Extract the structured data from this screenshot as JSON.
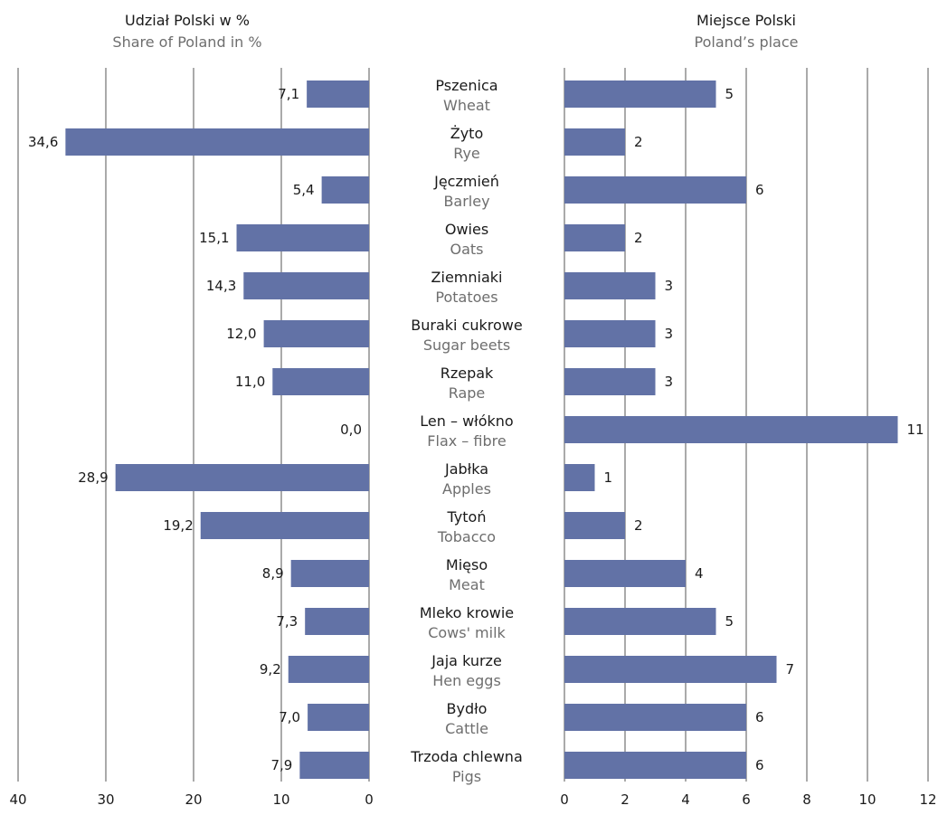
{
  "chart_data": [
    {
      "type": "bar",
      "orientation": "horizontal",
      "direction": "right-to-left",
      "title": "Udział Polski w %",
      "subtitle": "Share of Poland in %",
      "xlim": [
        0,
        40
      ],
      "ticks": [
        "40",
        "30",
        "20",
        "10",
        "0"
      ],
      "grid": true,
      "bar_color": "#6272a6",
      "categories": [
        "Pszenica",
        "Żyto",
        "Jęczmień",
        "Owies",
        "Ziemniaki",
        "Buraki cukrowe",
        "Rzepak",
        "Len – włókno",
        "Jabłka",
        "Tytoń",
        "Mięso",
        "Mleko krowie",
        "Jaja kurze",
        "Bydło",
        "Trzoda chlewna"
      ],
      "categories_en": [
        "Wheat",
        "Rye",
        "Barley",
        "Oats",
        "Potatoes",
        "Sugar beets",
        "Rape",
        "Flax – fibre",
        "Apples",
        "Tobacco",
        "Meat",
        "Cows' milk",
        "Hen eggs",
        "Cattle",
        "Pigs"
      ],
      "values": [
        7.1,
        34.6,
        5.4,
        15.1,
        14.3,
        12.0,
        11.0,
        0.0,
        28.9,
        19.2,
        8.9,
        7.3,
        9.2,
        7.0,
        7.9
      ],
      "value_labels": [
        "7,1",
        "34,6",
        "5,4",
        "15,1",
        "14,3",
        "12,0",
        "11,0",
        "0,0",
        "28,9",
        "19,2",
        "8,9",
        "7,3",
        "9,2",
        "7,0",
        "7,9"
      ]
    },
    {
      "type": "bar",
      "orientation": "horizontal",
      "direction": "left-to-right",
      "title": "Miejsce Polski",
      "subtitle": "Poland’s place",
      "xlim": [
        0,
        12
      ],
      "ticks": [
        "0",
        "2",
        "4",
        "6",
        "8",
        "10",
        "12"
      ],
      "grid": true,
      "bar_color": "#6272a6",
      "categories": [
        "Pszenica",
        "Żyto",
        "Jęczmień",
        "Owies",
        "Ziemniaki",
        "Buraki cukrowe",
        "Rzepak",
        "Len – włókno",
        "Jabłka",
        "Tytoń",
        "Mięso",
        "Mleko krowie",
        "Jaja kurze",
        "Bydło",
        "Trzoda chlewna"
      ],
      "values": [
        5,
        2,
        6,
        2,
        3,
        3,
        3,
        11,
        1,
        2,
        4,
        5,
        7,
        6,
        6
      ],
      "value_labels": [
        "5",
        "2",
        "6",
        "2",
        "3",
        "3",
        "3",
        "11",
        "1",
        "2",
        "4",
        "5",
        "7",
        "6",
        "6"
      ]
    }
  ]
}
